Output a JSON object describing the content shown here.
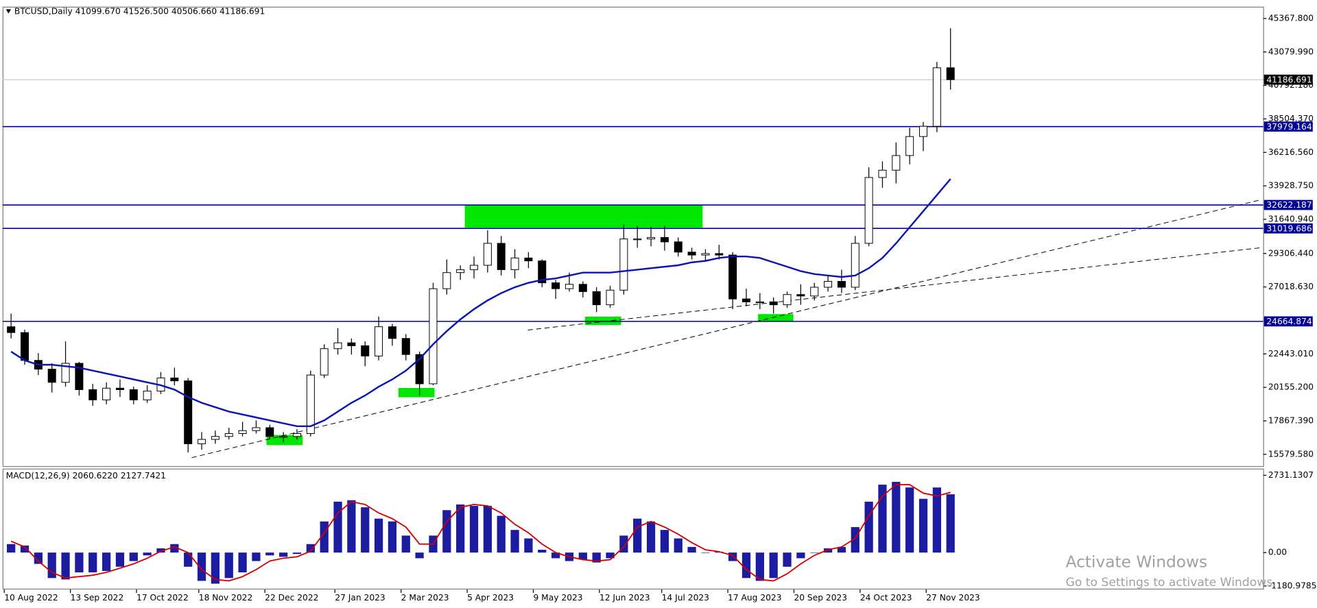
{
  "chart_data": [
    {
      "type": "candlestick",
      "title": "BTCUSD,Daily  41099.670 41526.500 40506.660 41186.691",
      "categories": [
        null,
        null,
        null,
        null,
        null,
        null,
        null,
        null,
        null,
        null,
        null,
        null,
        null,
        null,
        null,
        null,
        null,
        null,
        null,
        null,
        null,
        null,
        null,
        null,
        null,
        null,
        null,
        null,
        null,
        null,
        null,
        null,
        null,
        null,
        null,
        null,
        null,
        null,
        null,
        null,
        null,
        null,
        null,
        null,
        null,
        null,
        null,
        null,
        null,
        null,
        null,
        null,
        null,
        null,
        null,
        null,
        null,
        null,
        null,
        null,
        null,
        null,
        null,
        null,
        null,
        null,
        null,
        null,
        null,
        null
      ],
      "open": [
        24300,
        23900,
        22000,
        21400,
        20500,
        21800,
        20000,
        19300,
        20100,
        20000,
        19300,
        19900,
        20800,
        20600,
        16300,
        16600,
        16800,
        17000,
        17200,
        17400,
        16800,
        16800,
        17000,
        21000,
        22800,
        23200,
        23000,
        22300,
        24300,
        23500,
        22400,
        20400,
        26900,
        28000,
        28200,
        28500,
        30000,
        28200,
        29000,
        28800,
        27300,
        26900,
        27200,
        26700,
        25800,
        26800,
        30300,
        30300,
        30400,
        30100,
        29400,
        29200,
        29300,
        29200,
        26200,
        26000,
        26000,
        25800,
        26500,
        26400,
        27000,
        27400,
        27000,
        30000,
        34500,
        35000,
        36000,
        37300,
        38000,
        42000
      ],
      "high": [
        25200,
        24100,
        22500,
        21800,
        23300,
        21900,
        20400,
        20500,
        20700,
        20200,
        20300,
        21200,
        21500,
        20800,
        17100,
        17200,
        17400,
        17800,
        17900,
        17600,
        17100,
        17300,
        21300,
        23100,
        24200,
        23500,
        23300,
        25000,
        24500,
        23800,
        22600,
        27300,
        28900,
        28500,
        29100,
        30900,
        30500,
        29600,
        29400,
        28900,
        27500,
        28000,
        27400,
        27000,
        27100,
        31300,
        31200,
        31100,
        31200,
        30400,
        29700,
        29600,
        29900,
        29400,
        26900,
        26600,
        26300,
        26700,
        27200,
        27300,
        27800,
        28200,
        30500,
        35200,
        35600,
        36900,
        37900,
        38300,
        42400,
        44700
      ],
      "low": [
        23500,
        21700,
        21000,
        19800,
        20200,
        19600,
        18900,
        19000,
        19500,
        19000,
        19100,
        19700,
        20300,
        15700,
        15900,
        16300,
        16600,
        16800,
        17000,
        16600,
        16400,
        16600,
        16800,
        20800,
        22400,
        22400,
        21600,
        22000,
        23000,
        22000,
        19600,
        20300,
        26500,
        27500,
        27600,
        28000,
        27800,
        27600,
        28300,
        27000,
        26200,
        26700,
        26300,
        25300,
        25600,
        26500,
        29700,
        29800,
        29500,
        29100,
        28900,
        28800,
        28900,
        25500,
        25700,
        25500,
        25200,
        25600,
        25800,
        26100,
        26700,
        26600,
        26800,
        29800,
        33800,
        34100,
        35400,
        36300,
        37600,
        40500
      ],
      "close": [
        23900,
        22000,
        21400,
        20500,
        21800,
        20000,
        19300,
        20100,
        20000,
        19300,
        19900,
        20800,
        20600,
        16300,
        16600,
        16800,
        17000,
        17200,
        17400,
        16800,
        16800,
        17000,
        21000,
        22800,
        23200,
        23000,
        22300,
        24300,
        23500,
        22400,
        20400,
        26900,
        28000,
        28200,
        28500,
        30000,
        28200,
        29000,
        28800,
        27300,
        26900,
        27200,
        26700,
        25800,
        26800,
        30300,
        30300,
        30400,
        30100,
        29400,
        29200,
        29300,
        29200,
        26200,
        26000,
        26000,
        25800,
        26500,
        26400,
        27000,
        27400,
        27000,
        30000,
        34500,
        35000,
        36000,
        37300,
        38000,
        42000,
        41186.691
      ],
      "up_color": "#ffffff",
      "down_color": "#000000",
      "outline_color": "#000000",
      "moving_average": {
        "color": "#0a14b4",
        "values": [
          22600,
          22000,
          21700,
          21700,
          21600,
          21500,
          21300,
          21100,
          20900,
          20700,
          20500,
          20300,
          20000,
          19500,
          19100,
          18800,
          18500,
          18300,
          18100,
          17900,
          17700,
          17500,
          17500,
          17900,
          18500,
          19100,
          19600,
          20200,
          20700,
          21300,
          22100,
          23100,
          24000,
          24800,
          25500,
          26100,
          26600,
          27000,
          27300,
          27500,
          27600,
          27800,
          28000,
          28000,
          28000,
          28100,
          28200,
          28300,
          28400,
          28500,
          28700,
          28800,
          29000,
          29100,
          29100,
          29000,
          28700,
          28400,
          28100,
          27900,
          27800,
          27700,
          27800,
          28300,
          29000,
          30000,
          31100,
          32200,
          33300,
          34400
        ]
      },
      "levels": [
        37979.164,
        32622.187,
        31019.686,
        24664.874
      ],
      "level_color": "#000096",
      "last_price": 41186.691,
      "last_price_color": "#c0c0c0",
      "xlim": [
        0,
        92.4
      ],
      "xticks": [
        {
          "value": 0,
          "label": "10 Aug 2022"
        },
        {
          "value": 4.857,
          "label": "13 Sep 2022"
        },
        {
          "value": 9.714,
          "label": "17 Oct 2022"
        },
        {
          "value": 14.286,
          "label": "18 Nov 2022"
        },
        {
          "value": 19.143,
          "label": "22 Dec 2022"
        },
        {
          "value": 24.286,
          "label": "27 Jan 2023"
        },
        {
          "value": 29.143,
          "label": "2 Mar 2023"
        },
        {
          "value": 34,
          "label": "5 Apr 2023"
        },
        {
          "value": 38.857,
          "label": "9 May 2023"
        },
        {
          "value": 43.714,
          "label": "12 Jun 2023"
        },
        {
          "value": 48.286,
          "label": "14 Jul 2023"
        },
        {
          "value": 53.143,
          "label": "17 Aug 2023"
        },
        {
          "value": 58,
          "label": "20 Sep 2023"
        },
        {
          "value": 62.857,
          "label": "24 Oct 2023"
        },
        {
          "value": 67.714,
          "label": "27 Nov 2023"
        }
      ],
      "ylim": [
        14776,
        45942
      ],
      "yticks": [
        {
          "value": 45367.8,
          "label": "45367.800"
        },
        {
          "value": 43079.99,
          "label": "43079.990"
        },
        {
          "value": 40792.18,
          "label": "40792.180"
        },
        {
          "value": 38504.37,
          "label": "38504.370"
        },
        {
          "value": 36216.56,
          "label": "36216.560"
        },
        {
          "value": 33928.75,
          "label": "33928.750"
        },
        {
          "value": 31640.94,
          "label": "31640.940"
        },
        {
          "value": 29306.44,
          "label": "29306.440"
        },
        {
          "value": 27018.63,
          "label": "27018.630"
        },
        {
          "value": 22443.01,
          "label": "22443.010"
        },
        {
          "value": 20155.2,
          "label": "20155.200"
        },
        {
          "value": 17867.39,
          "label": "17867.390"
        },
        {
          "value": 15579.58,
          "label": "15579.580"
        }
      ]
    },
    {
      "type": "macd",
      "title": "MACD(12,26,9) 2060.6220 2127.7421",
      "series": [
        {
          "name": "MACD",
          "color": "#1c1ca0",
          "values": [
            300,
            250,
            -400,
            -900,
            -950,
            -700,
            -700,
            -650,
            -500,
            -300,
            -100,
            150,
            300,
            -500,
            -1000,
            -1100,
            -900,
            -700,
            -300,
            -100,
            -150,
            -50,
            300,
            1100,
            1800,
            1850,
            1600,
            1200,
            1100,
            600,
            -200,
            600,
            1500,
            1700,
            1650,
            1650,
            1300,
            800,
            500,
            100,
            -200,
            -300,
            -250,
            -350,
            -200,
            600,
            1200,
            1100,
            800,
            500,
            200,
            0,
            30,
            -300,
            -900,
            -1000,
            -900,
            -500,
            -200,
            0,
            150,
            200,
            900,
            1800,
            2400,
            2500,
            2300,
            1900,
            2300,
            2060.622
          ]
        },
        {
          "name": "Signal",
          "color": "#d40000",
          "values": [
            400,
            200,
            -300,
            -700,
            -900,
            -850,
            -800,
            -700,
            -550,
            -400,
            -200,
            50,
            200,
            0,
            -600,
            -950,
            -1000,
            -850,
            -600,
            -300,
            -200,
            -150,
            50,
            700,
            1400,
            1800,
            1700,
            1400,
            1200,
            900,
            300,
            300,
            1100,
            1600,
            1700,
            1650,
            1400,
            1000,
            700,
            300,
            0,
            -150,
            -250,
            -300,
            -250,
            200,
            900,
            1100,
            900,
            650,
            350,
            100,
            30,
            -100,
            -600,
            -950,
            -1000,
            -750,
            -400,
            -100,
            100,
            200,
            500,
            1300,
            2000,
            2400,
            2400,
            2100,
            2000,
            2127.7421
          ]
        }
      ],
      "ylim": [
        -1306,
        2968
      ],
      "yticks": [
        2731.1307,
        {
          "value": 0,
          "label": "0.00"
        },
        -1180.9785
      ]
    }
  ],
  "watermark": {
    "title": "Activate Windows",
    "subtitle": "Go to Settings to activate Windows."
  }
}
